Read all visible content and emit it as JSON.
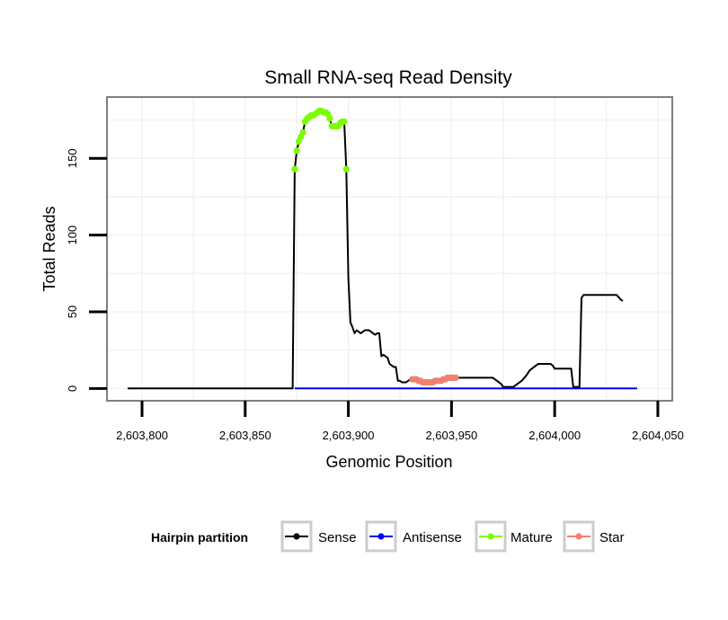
{
  "chart_data": {
    "type": "line",
    "title": "Small RNA-seq Read Density",
    "xlabel": "Genomic Position",
    "ylabel": "Total Reads",
    "xlim": [
      2603783,
      2604057
    ],
    "ylim": [
      -8,
      190
    ],
    "x_ticks": [
      2603800,
      2603850,
      2603900,
      2603950,
      2604000,
      2604050
    ],
    "x_tick_labels": [
      "2,603,800",
      "2,603,850",
      "2,603,900",
      "2,603,950",
      "2,604,000",
      "2,604,050"
    ],
    "y_ticks": [
      0,
      50,
      100,
      150
    ],
    "y_tick_labels": [
      "0",
      "50",
      "100",
      "150"
    ],
    "grid": true,
    "legend": {
      "title": "Hairpin partition",
      "position": "bottom",
      "entries": [
        {
          "name": "Sense",
          "color": "#000000"
        },
        {
          "name": "Antisense",
          "color": "#0000ff"
        },
        {
          "name": "Mature",
          "color": "#7cfc00"
        },
        {
          "name": "Star",
          "color": "#f08070"
        }
      ]
    },
    "series": [
      {
        "name": "Sense",
        "color": "#000000",
        "marker": "line",
        "points": [
          [
            2603793,
            0
          ],
          [
            2603873,
            0
          ],
          [
            2603874,
            143
          ],
          [
            2603875,
            155
          ],
          [
            2603876,
            161
          ],
          [
            2603877,
            164
          ],
          [
            2603878,
            167
          ],
          [
            2603879,
            174
          ],
          [
            2603880,
            176
          ],
          [
            2603881,
            177
          ],
          [
            2603882,
            178
          ],
          [
            2603883,
            178
          ],
          [
            2603884,
            179
          ],
          [
            2603885,
            180
          ],
          [
            2603886,
            181
          ],
          [
            2603887,
            181
          ],
          [
            2603888,
            180
          ],
          [
            2603889,
            180
          ],
          [
            2603890,
            179
          ],
          [
            2603891,
            176
          ],
          [
            2603892,
            171
          ],
          [
            2603893,
            171
          ],
          [
            2603894,
            171
          ],
          [
            2603895,
            171
          ],
          [
            2603896,
            173
          ],
          [
            2603897,
            174
          ],
          [
            2603898,
            174
          ],
          [
            2603899,
            143
          ],
          [
            2603900,
            72
          ],
          [
            2603901,
            43
          ],
          [
            2603902,
            40
          ],
          [
            2603903,
            36
          ],
          [
            2603904,
            38
          ],
          [
            2603905,
            37
          ],
          [
            2603906,
            36
          ],
          [
            2603907,
            37
          ],
          [
            2603908,
            38
          ],
          [
            2603910,
            38
          ],
          [
            2603911,
            37
          ],
          [
            2603912,
            36
          ],
          [
            2603913,
            35
          ],
          [
            2603914,
            36
          ],
          [
            2603915,
            36
          ],
          [
            2603916,
            21
          ],
          [
            2603917,
            22
          ],
          [
            2603918,
            21
          ],
          [
            2603919,
            20
          ],
          [
            2603920,
            16
          ],
          [
            2603921,
            15
          ],
          [
            2603922,
            14
          ],
          [
            2603923,
            14
          ],
          [
            2603924,
            5
          ],
          [
            2603925,
            5
          ],
          [
            2603926,
            4
          ],
          [
            2603928,
            4
          ],
          [
            2603930,
            6
          ],
          [
            2603932,
            6
          ],
          [
            2603934,
            5
          ],
          [
            2603936,
            4
          ],
          [
            2603938,
            4
          ],
          [
            2603940,
            4
          ],
          [
            2603942,
            5
          ],
          [
            2603944,
            5
          ],
          [
            2603946,
            6
          ],
          [
            2603948,
            7
          ],
          [
            2603950,
            7
          ],
          [
            2603952,
            7
          ],
          [
            2603953,
            7
          ],
          [
            2603955,
            7
          ],
          [
            2603958,
            7
          ],
          [
            2603962,
            7
          ],
          [
            2603966,
            7
          ],
          [
            2603970,
            7
          ],
          [
            2603972,
            5
          ],
          [
            2603974,
            3
          ],
          [
            2603975,
            1
          ],
          [
            2603978,
            1
          ],
          [
            2603980,
            1
          ],
          [
            2603982,
            3
          ],
          [
            2603984,
            5
          ],
          [
            2603986,
            8
          ],
          [
            2603988,
            12
          ],
          [
            2603990,
            14
          ],
          [
            2603992,
            16
          ],
          [
            2603994,
            16
          ],
          [
            2603998,
            16
          ],
          [
            2603999,
            15
          ],
          [
            2604000,
            13
          ],
          [
            2604002,
            13
          ],
          [
            2604006,
            13
          ],
          [
            2604008,
            13
          ],
          [
            2604009,
            1
          ],
          [
            2604012,
            1
          ],
          [
            2604013,
            59
          ],
          [
            2604014,
            61
          ],
          [
            2604016,
            61
          ],
          [
            2604020,
            61
          ],
          [
            2604026,
            61
          ],
          [
            2604030,
            61
          ],
          [
            2604032,
            58
          ],
          [
            2604033,
            57
          ]
        ]
      },
      {
        "name": "Antisense",
        "color": "#0000ff",
        "marker": "line",
        "points": [
          [
            2603874,
            0
          ],
          [
            2604040,
            0
          ]
        ]
      },
      {
        "name": "Mature",
        "color": "#7cfc00",
        "marker": "points",
        "points": [
          [
            2603874,
            143
          ],
          [
            2603875,
            155
          ],
          [
            2603876,
            161
          ],
          [
            2603877,
            164
          ],
          [
            2603878,
            167
          ],
          [
            2603879,
            174
          ],
          [
            2603880,
            176
          ],
          [
            2603881,
            177
          ],
          [
            2603882,
            178
          ],
          [
            2603883,
            178
          ],
          [
            2603884,
            179
          ],
          [
            2603885,
            180
          ],
          [
            2603886,
            181
          ],
          [
            2603887,
            181
          ],
          [
            2603888,
            180
          ],
          [
            2603889,
            180
          ],
          [
            2603890,
            179
          ],
          [
            2603891,
            176
          ],
          [
            2603892,
            171
          ],
          [
            2603893,
            171
          ],
          [
            2603894,
            171
          ],
          [
            2603895,
            171
          ],
          [
            2603896,
            173
          ],
          [
            2603897,
            174
          ],
          [
            2603898,
            174
          ],
          [
            2603899,
            143
          ]
        ]
      },
      {
        "name": "Star",
        "color": "#f08070",
        "marker": "points",
        "points": [
          [
            2603931,
            6
          ],
          [
            2603932,
            6
          ],
          [
            2603933,
            6
          ],
          [
            2603934,
            5
          ],
          [
            2603935,
            5
          ],
          [
            2603936,
            4
          ],
          [
            2603937,
            4
          ],
          [
            2603938,
            4
          ],
          [
            2603939,
            4
          ],
          [
            2603940,
            4
          ],
          [
            2603941,
            4
          ],
          [
            2603942,
            5
          ],
          [
            2603943,
            5
          ],
          [
            2603944,
            5
          ],
          [
            2603945,
            5
          ],
          [
            2603946,
            6
          ],
          [
            2603947,
            6
          ],
          [
            2603948,
            7
          ],
          [
            2603949,
            7
          ],
          [
            2603950,
            7
          ],
          [
            2603951,
            7
          ],
          [
            2603952,
            7
          ]
        ]
      }
    ]
  }
}
